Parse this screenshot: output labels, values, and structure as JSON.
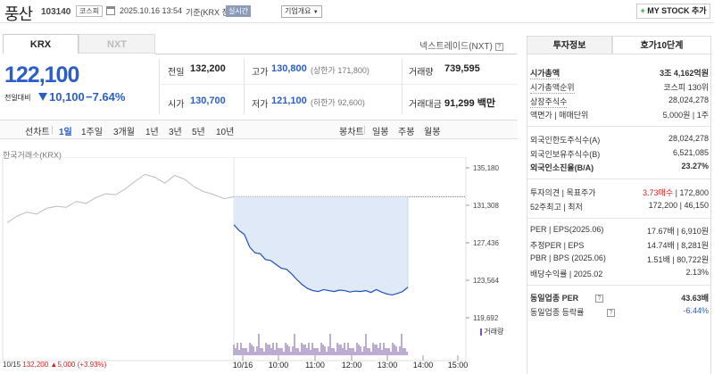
{
  "header": {
    "stock_name": "풍산",
    "stock_code": "103140",
    "market_badge": "코스피",
    "datetime": "2025.10.16 13:54",
    "basis": "기준(KRX 장중)",
    "realtime_badge": "실시간",
    "company_overview_select": "기업개요",
    "my_stock_button": "MY STOCK 추가"
  },
  "market_tabs": [
    "KRX",
    "NXT"
  ],
  "nxt_link": "넥스트레이드(NXT)",
  "quote": {
    "price": "122,100",
    "change_label": "전일대비",
    "change_value": "10,100",
    "change_pct": "−7.64%",
    "prev_close_label": "전일",
    "prev_close": "132,200",
    "open_label": "시가",
    "open": "130,700",
    "high_label": "고가",
    "high": "130,800",
    "upper_limit": "(상한가 171,800)",
    "low_label": "저가",
    "low": "121,100",
    "lower_limit": "(하한가 92,600)",
    "volume_label": "거래량",
    "volume": "739,595",
    "amount_label": "거래대금",
    "amount": "91,299 백만"
  },
  "period_tabs": {
    "line_label": "선차트",
    "line_items": [
      "1일",
      "1주일",
      "3개월",
      "1년",
      "3년",
      "5년",
      "10년"
    ],
    "active": "1일",
    "candle_label": "봉차트",
    "candle_items": [
      "일봉",
      "주봉",
      "월봉"
    ]
  },
  "chart_data": {
    "type": "line",
    "exchange_label": "한국거래소(KRX)",
    "y_ticks": [
      "135,180",
      "131,308",
      "127,436",
      "123,564",
      "119,692"
    ],
    "x_ticks": [
      "10/16",
      "10:00",
      "11:00",
      "12:00",
      "13:00",
      "14:00",
      "15:00"
    ],
    "ylim": [
      119692,
      135180
    ],
    "prev_close": 132200,
    "prev_day": {
      "values": [
        129500,
        130200,
        130600,
        130400,
        131000,
        131200,
        131100,
        131700,
        131500,
        132100,
        132500,
        132400,
        133000,
        133800,
        134500,
        134200,
        133600,
        134400,
        134000,
        133200,
        132700,
        132400,
        132000,
        132200
      ]
    },
    "today": {
      "values": [
        129300,
        128700,
        128300,
        127000,
        126400,
        126300,
        125700,
        125600,
        125200,
        124800,
        124700,
        124200,
        123600,
        123100,
        122700,
        122500,
        122400,
        122600,
        122500,
        122400,
        122550,
        122500,
        122350,
        122450,
        122400,
        122500,
        122300,
        122600,
        122350,
        122150,
        122050,
        122200,
        122400,
        122850
      ]
    },
    "volume_label": "거래량",
    "bottom_info": {
      "date": "10/15",
      "close": "132,200",
      "change": "5,000",
      "pct": "(+3.93%)"
    }
  },
  "right_panel": {
    "tabs": [
      "투자정보",
      "호가10단계"
    ],
    "rows1": [
      {
        "label": "시가총액",
        "value": "3조 4,162억원"
      },
      {
        "label": "시가총액순위",
        "value": "코스피 130위"
      },
      {
        "label": "상장주식수",
        "value": "28,024,278"
      },
      {
        "label": "액면가 | 매매단위",
        "value": "5,000원 | 1주"
      }
    ],
    "rows2": [
      {
        "label": "외국인한도주식수(A)",
        "value": "28,024,278"
      },
      {
        "label": "외국인보유주식수(B)",
        "value": "6,521,085"
      },
      {
        "label": "외국인소진율(B/A)",
        "value": "23.27%"
      }
    ],
    "opinion": {
      "label": "투자의견 | 목표주가",
      "rating": "3.73매수",
      "target": "172,800"
    },
    "week52": {
      "label": "52주최고 | 최저",
      "high": "172,200",
      "low": "46,150"
    },
    "rows3": [
      {
        "label": "PER | EPS(2025.06)",
        "v1": "17.67배",
        "v2": "6,910원"
      },
      {
        "label": "추정PER | EPS",
        "v1": "14.74배",
        "v2": "8,281원"
      },
      {
        "label": "PBR | BPS (2025.06)",
        "v1": "1.51배",
        "v2": "80,722원"
      },
      {
        "label": "배당수익률 | 2025.02",
        "v1": "",
        "v2": "2.13%"
      }
    ],
    "sector_per": {
      "label": "동일업종 PER",
      "value": "43.63배"
    },
    "sector_change": {
      "label": "동일업종 등락률",
      "value": "-6.44%"
    }
  }
}
